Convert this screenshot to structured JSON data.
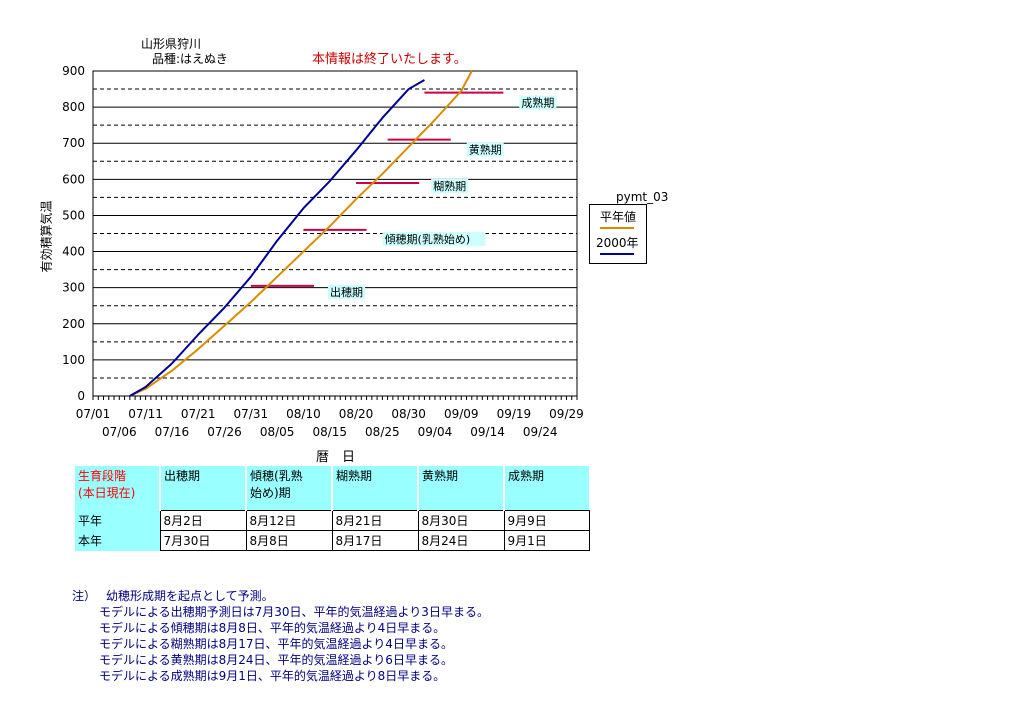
{
  "header": {
    "location": "山形県狩川",
    "variety": "品種:はえぬき",
    "notice": "本情報は終了いたします。"
  },
  "chart_data": {
    "type": "line",
    "ylabel": "有効積算気温",
    "xlabel": "暦　日",
    "ylim": [
      0,
      900
    ],
    "yticks": [
      "0",
      "100",
      "200",
      "300",
      "400",
      "500",
      "600",
      "700",
      "800",
      "900"
    ],
    "xticks_top": [
      "07/01",
      "07/11",
      "07/21",
      "07/31",
      "08/10",
      "08/20",
      "08/30",
      "09/09",
      "09/19",
      "09/29"
    ],
    "xticks_bottom": [
      "07/06",
      "07/16",
      "07/26",
      "08/05",
      "08/15",
      "08/25",
      "09/04",
      "09/14",
      "09/24"
    ],
    "grid": "horizontal solid at hundreds, dashed at fifties",
    "legend_title": "pymt_03",
    "series": [
      {
        "name": "平年値",
        "color": "#d98c00",
        "x": [
          7,
          10,
          15,
          20,
          25,
          30,
          35,
          40,
          45,
          50,
          55,
          60,
          65,
          70,
          72
        ],
        "y": [
          0,
          20,
          70,
          130,
          195,
          260,
          330,
          400,
          470,
          545,
          615,
          690,
          765,
          845,
          900
        ]
      },
      {
        "name": "2000年",
        "color": "#000099",
        "x": [
          7,
          10,
          15,
          20,
          25,
          30,
          35,
          40,
          45,
          50,
          55,
          60,
          63
        ],
        "y": [
          0,
          25,
          90,
          170,
          245,
          330,
          430,
          520,
          595,
          680,
          770,
          850,
          875
        ]
      }
    ],
    "stage_lines": [
      {
        "label": "出穂期",
        "y": 305,
        "x_start": 30,
        "x_end": 42
      },
      {
        "label": "傾穂期(乳熟始め)",
        "y": 460,
        "x_start": 40,
        "x_end": 52
      },
      {
        "label": "糊熟期",
        "y": 590,
        "x_start": 50,
        "x_end": 62
      },
      {
        "label": "黄熟期",
        "y": 710,
        "x_start": 56,
        "x_end": 68
      },
      {
        "label": "成熟期",
        "y": 840,
        "x_start": 63,
        "x_end": 78
      }
    ],
    "x_domain": [
      0,
      92
    ]
  },
  "table": {
    "corner_label": "生育段階\n(本日現在)",
    "columns": [
      "出穂期",
      "傾穂(乳熟\n始め)期",
      "糊熟期",
      "黄熟期",
      "成熟期"
    ],
    "rows": [
      {
        "label": "平年",
        "values": [
          "8月2日",
          "8月12日",
          "8月21日",
          "8月30日",
          "9月9日"
        ]
      },
      {
        "label": "本年",
        "values": [
          "7月30日",
          "8月8日",
          "8月17日",
          "8月24日",
          "9月1日"
        ]
      }
    ]
  },
  "notes": {
    "lead": "注）",
    "lines": [
      "幼穂形成期を起点として予測。",
      "モデルによる出穂期予測日は7月30日、平年的気温経過より3日早まる。",
      "モデルによる傾穂期は8月8日、平年的気温経過より4日早まる。",
      "モデルによる糊熟期は8月17日、平年的気温経過より4日早まる。",
      "モデルによる黄熟期は8月24日、平年的気温経過より6日早まる。",
      "モデルによる成熟期は9月1日、平年的気温経過より8日早まる。"
    ]
  },
  "colors": {
    "normal_line": "#d98c00",
    "this_year_line": "#000099",
    "stage_bar": "#cc0044",
    "stage_label_bg": "#ccffff",
    "table_header_bg": "#99ffff",
    "notice": "#cc0000"
  }
}
